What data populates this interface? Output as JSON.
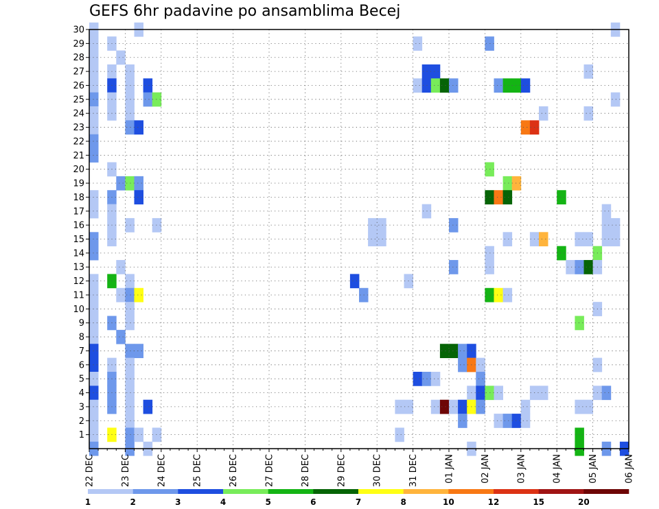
{
  "chart_data": {
    "type": "heatmap",
    "title": "GEFS 6hr padavine po ansamblima Becej",
    "xlabel": "",
    "ylabel": "",
    "x_tick_labels": [
      "22 DEC",
      "23 DEC",
      "24 DEC",
      "25 DEC",
      "26 DEC",
      "27 DEC",
      "28 DEC",
      "29 DEC",
      "30 DEC",
      "31 DEC",
      "01 JAN",
      "02 JAN",
      "03 JAN",
      "04 JAN",
      "05 JAN",
      "06 JAN"
    ],
    "y_tick_labels": [
      "1",
      "2",
      "3",
      "4",
      "5",
      "6",
      "7",
      "8",
      "9",
      "10",
      "11",
      "12",
      "13",
      "14",
      "15",
      "16",
      "17",
      "18",
      "19",
      "20",
      "21",
      "22",
      "23",
      "24",
      "25",
      "26",
      "27",
      "28",
      "29",
      "30"
    ],
    "xlim": [
      0,
      60
    ],
    "ylim": [
      0,
      30
    ],
    "grid": true,
    "colorbar": {
      "position": "bottom",
      "labels": [
        "1",
        "2",
        "3",
        "4",
        "5",
        "6",
        "7",
        "8",
        "10",
        "12",
        "15",
        "20"
      ],
      "colors": [
        "#b4c8f5",
        "#6e98eb",
        "#1e4ee0",
        "#78ec5a",
        "#14b414",
        "#066406",
        "#ffff14",
        "#ffb43c",
        "#f87814",
        "#dc3214",
        "#a01414",
        "#6e0606"
      ]
    },
    "cells": [
      [
        0,
        30,
        0
      ],
      [
        0,
        29,
        0
      ],
      [
        0,
        28,
        0
      ],
      [
        0,
        27,
        0
      ],
      [
        0,
        26,
        0
      ],
      [
        0,
        25,
        1
      ],
      [
        0,
        24,
        0
      ],
      [
        0,
        23,
        0
      ],
      [
        0,
        22,
        1
      ],
      [
        0,
        21,
        1
      ],
      [
        0,
        18,
        0
      ],
      [
        0,
        17,
        0
      ],
      [
        0,
        15,
        1
      ],
      [
        0,
        14,
        1
      ],
      [
        0,
        12,
        0
      ],
      [
        0,
        11,
        0
      ],
      [
        0,
        10,
        0
      ],
      [
        0,
        9,
        0
      ],
      [
        0,
        8,
        0
      ],
      [
        0,
        7,
        2
      ],
      [
        0,
        6,
        2
      ],
      [
        0,
        5,
        0
      ],
      [
        0,
        4,
        2
      ],
      [
        0,
        3,
        0
      ],
      [
        0,
        2,
        0
      ],
      [
        0,
        1,
        0
      ],
      [
        0,
        0,
        1
      ],
      [
        2,
        29,
        0
      ],
      [
        2,
        27,
        0
      ],
      [
        2,
        26,
        2
      ],
      [
        2,
        25,
        0
      ],
      [
        2,
        24,
        0
      ],
      [
        2,
        20,
        0
      ],
      [
        2,
        18,
        1
      ],
      [
        2,
        17,
        0
      ],
      [
        2,
        16,
        0
      ],
      [
        2,
        15,
        0
      ],
      [
        2,
        12,
        4
      ],
      [
        2,
        9,
        1
      ],
      [
        2,
        6,
        0
      ],
      [
        2,
        5,
        1
      ],
      [
        2,
        4,
        1
      ],
      [
        2,
        3,
        1
      ],
      [
        2,
        1,
        6
      ],
      [
        3,
        28,
        0
      ],
      [
        3,
        13,
        0
      ],
      [
        3,
        11,
        0
      ],
      [
        3,
        19,
        1
      ],
      [
        3,
        8,
        1
      ],
      [
        4,
        27,
        0
      ],
      [
        4,
        26,
        0
      ],
      [
        4,
        25,
        0
      ],
      [
        4,
        24,
        0
      ],
      [
        4,
        23,
        1
      ],
      [
        4,
        19,
        3
      ],
      [
        4,
        16,
        0
      ],
      [
        4,
        12,
        0
      ],
      [
        4,
        11,
        1
      ],
      [
        4,
        10,
        0
      ],
      [
        4,
        9,
        0
      ],
      [
        4,
        7,
        1
      ],
      [
        4,
        6,
        0
      ],
      [
        4,
        5,
        0
      ],
      [
        4,
        4,
        0
      ],
      [
        4,
        3,
        0
      ],
      [
        4,
        2,
        0
      ],
      [
        4,
        1,
        1
      ],
      [
        4,
        0,
        1
      ],
      [
        5,
        30,
        0
      ],
      [
        5,
        23,
        2
      ],
      [
        5,
        19,
        1
      ],
      [
        5,
        18,
        2
      ],
      [
        5,
        11,
        6
      ],
      [
        5,
        7,
        1
      ],
      [
        5,
        1,
        0
      ],
      [
        6,
        26,
        2
      ],
      [
        6,
        25,
        1
      ],
      [
        6,
        3,
        2
      ],
      [
        6,
        0,
        0
      ],
      [
        7,
        25,
        3
      ],
      [
        7,
        16,
        0
      ],
      [
        7,
        1,
        0
      ],
      [
        29,
        12,
        2
      ],
      [
        30,
        11,
        1
      ],
      [
        31,
        16,
        0
      ],
      [
        32,
        16,
        0
      ],
      [
        31,
        15,
        0
      ],
      [
        32,
        15,
        0
      ],
      [
        34,
        3,
        0
      ],
      [
        35,
        3,
        0
      ],
      [
        34,
        1,
        0
      ],
      [
        35,
        12,
        0
      ],
      [
        36,
        29,
        0
      ],
      [
        36,
        26,
        0
      ],
      [
        36,
        5,
        2
      ],
      [
        37,
        27,
        2
      ],
      [
        37,
        26,
        2
      ],
      [
        37,
        17,
        0
      ],
      [
        37,
        5,
        1
      ],
      [
        38,
        27,
        2
      ],
      [
        38,
        26,
        3
      ],
      [
        38,
        5,
        0
      ],
      [
        38,
        3,
        0
      ],
      [
        39,
        26,
        5
      ],
      [
        39,
        3,
        11
      ],
      [
        39,
        7,
        5
      ],
      [
        40,
        26,
        1
      ],
      [
        40,
        16,
        1
      ],
      [
        40,
        13,
        1
      ],
      [
        40,
        3,
        0
      ],
      [
        40,
        7,
        5
      ],
      [
        41,
        7,
        1
      ],
      [
        41,
        6,
        1
      ],
      [
        41,
        3,
        2
      ],
      [
        41,
        2,
        1
      ],
      [
        42,
        7,
        2
      ],
      [
        42,
        6,
        8
      ],
      [
        42,
        4,
        0
      ],
      [
        42,
        3,
        6
      ],
      [
        42,
        0,
        0
      ],
      [
        43,
        6,
        0
      ],
      [
        43,
        5,
        1
      ],
      [
        43,
        4,
        2
      ],
      [
        43,
        3,
        1
      ],
      [
        44,
        29,
        1
      ],
      [
        44,
        20,
        3
      ],
      [
        44,
        18,
        5
      ],
      [
        44,
        14,
        0
      ],
      [
        44,
        13,
        0
      ],
      [
        44,
        11,
        4
      ],
      [
        44,
        4,
        3
      ],
      [
        45,
        26,
        1
      ],
      [
        45,
        18,
        8
      ],
      [
        45,
        11,
        6
      ],
      [
        45,
        4,
        0
      ],
      [
        45,
        2,
        0
      ],
      [
        46,
        26,
        4
      ],
      [
        46,
        19,
        3
      ],
      [
        46,
        18,
        5
      ],
      [
        46,
        15,
        0
      ],
      [
        46,
        11,
        0
      ],
      [
        46,
        2,
        1
      ],
      [
        47,
        26,
        4
      ],
      [
        47,
        19,
        7
      ],
      [
        47,
        2,
        2
      ],
      [
        48,
        26,
        2
      ],
      [
        48,
        23,
        8
      ],
      [
        48,
        3,
        0
      ],
      [
        48,
        2,
        0
      ],
      [
        49,
        23,
        9
      ],
      [
        49,
        4,
        0
      ],
      [
        49,
        15,
        0
      ],
      [
        50,
        24,
        0
      ],
      [
        50,
        15,
        7
      ],
      [
        50,
        4,
        0
      ],
      [
        52,
        18,
        4
      ],
      [
        52,
        14,
        4
      ],
      [
        53,
        13,
        0
      ],
      [
        54,
        15,
        0
      ],
      [
        54,
        13,
        1
      ],
      [
        54,
        9,
        3
      ],
      [
        54,
        3,
        0
      ],
      [
        54,
        1,
        4
      ],
      [
        54,
        0,
        4
      ],
      [
        55,
        27,
        0
      ],
      [
        55,
        24,
        0
      ],
      [
        55,
        15,
        0
      ],
      [
        55,
        13,
        5
      ],
      [
        55,
        3,
        0
      ],
      [
        56,
        14,
        3
      ],
      [
        56,
        13,
        0
      ],
      [
        56,
        10,
        0
      ],
      [
        56,
        6,
        0
      ],
      [
        56,
        4,
        0
      ],
      [
        57,
        17,
        0
      ],
      [
        57,
        16,
        0
      ],
      [
        57,
        15,
        0
      ],
      [
        57,
        4,
        1
      ],
      [
        57,
        0,
        1
      ],
      [
        58,
        30,
        0
      ],
      [
        58,
        25,
        0
      ],
      [
        58,
        16,
        0
      ],
      [
        58,
        15,
        0
      ],
      [
        59,
        0,
        2
      ]
    ]
  }
}
